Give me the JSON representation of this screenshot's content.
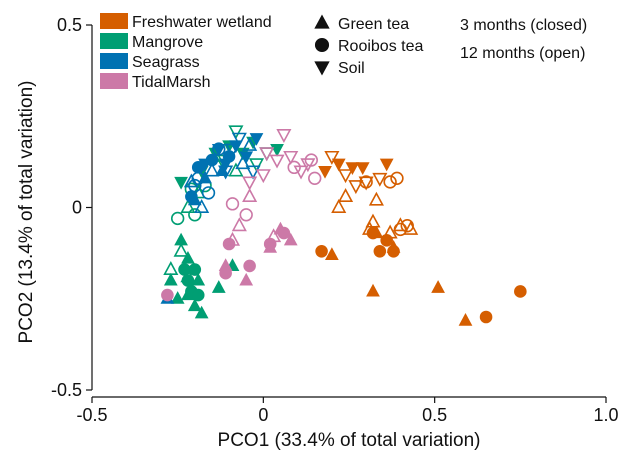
{
  "chart_data": {
    "type": "scatter",
    "xlabel": "PCO1 (33.4% of total variation)",
    "ylabel": "PCO2 (13.4% of total variation)",
    "xlim": [
      -0.5,
      1.0
    ],
    "ylim": [
      -0.5,
      0.5
    ],
    "xticks": [
      "-0.5",
      "0",
      "0.5",
      "1.0"
    ],
    "yticks": [
      "0.5",
      "0",
      "-0.5"
    ],
    "legend": {
      "ecosystems": [
        {
          "name": "Freshwater wetland",
          "color": "#d55e00"
        },
        {
          "name": "Mangrove",
          "color": "#009e73"
        },
        {
          "name": "Seagrass",
          "color": "#0072b2"
        },
        {
          "name": "TidalMarsh",
          "color": "#cc79a7"
        }
      ],
      "materials": [
        {
          "name": "Green tea",
          "shape": "triangle-up"
        },
        {
          "name": "Rooibos tea",
          "shape": "circle"
        },
        {
          "name": "Soil",
          "shape": "triangle-down"
        }
      ],
      "durations": [
        {
          "name": "3 months (closed)",
          "fill": "filled"
        },
        {
          "name": "12 months (open)",
          "fill": "open"
        }
      ]
    },
    "points": [
      {
        "x": 0.2,
        "y": -0.13,
        "eco": "Freshwater wetland",
        "m": "Green tea",
        "f": 1
      },
      {
        "x": 0.33,
        "y": -0.07,
        "eco": "Freshwater wetland",
        "m": "Green tea",
        "f": 1
      },
      {
        "x": 0.32,
        "y": -0.23,
        "eco": "Freshwater wetland",
        "m": "Green tea",
        "f": 1
      },
      {
        "x": 0.51,
        "y": -0.22,
        "eco": "Freshwater wetland",
        "m": "Green tea",
        "f": 1
      },
      {
        "x": 0.59,
        "y": -0.31,
        "eco": "Freshwater wetland",
        "m": "Green tea",
        "f": 1
      },
      {
        "x": 0.38,
        "y": -0.11,
        "eco": "Freshwater wetland",
        "m": "Green tea",
        "f": 1
      },
      {
        "x": 0.17,
        "y": -0.12,
        "eco": "Freshwater wetland",
        "m": "Rooibos tea",
        "f": 1
      },
      {
        "x": 0.36,
        "y": -0.09,
        "eco": "Freshwater wetland",
        "m": "Rooibos tea",
        "f": 1
      },
      {
        "x": 0.34,
        "y": -0.12,
        "eco": "Freshwater wetland",
        "m": "Rooibos tea",
        "f": 1
      },
      {
        "x": 0.38,
        "y": -0.12,
        "eco": "Freshwater wetland",
        "m": "Rooibos tea",
        "f": 1
      },
      {
        "x": 0.65,
        "y": -0.3,
        "eco": "Freshwater wetland",
        "m": "Rooibos tea",
        "f": 1
      },
      {
        "x": 0.75,
        "y": -0.23,
        "eco": "Freshwater wetland",
        "m": "Rooibos tea",
        "f": 1
      },
      {
        "x": 0.32,
        "y": -0.07,
        "eco": "Freshwater wetland",
        "m": "Rooibos tea",
        "f": 1
      },
      {
        "x": 0.22,
        "y": 0.12,
        "eco": "Freshwater wetland",
        "m": "Soil",
        "f": 1
      },
      {
        "x": 0.26,
        "y": 0.11,
        "eco": "Freshwater wetland",
        "m": "Soil",
        "f": 1
      },
      {
        "x": 0.29,
        "y": 0.11,
        "eco": "Freshwater wetland",
        "m": "Soil",
        "f": 1
      },
      {
        "x": 0.18,
        "y": 0.1,
        "eco": "Freshwater wetland",
        "m": "Soil",
        "f": 1
      },
      {
        "x": 0.36,
        "y": 0.12,
        "eco": "Freshwater wetland",
        "m": "Soil",
        "f": 1
      },
      {
        "x": 0.22,
        "y": 0.0,
        "eco": "Freshwater wetland",
        "m": "Green tea",
        "f": 0
      },
      {
        "x": 0.24,
        "y": 0.03,
        "eco": "Freshwater wetland",
        "m": "Green tea",
        "f": 0
      },
      {
        "x": 0.33,
        "y": 0.02,
        "eco": "Freshwater wetland",
        "m": "Green tea",
        "f": 0
      },
      {
        "x": 0.32,
        "y": -0.04,
        "eco": "Freshwater wetland",
        "m": "Green tea",
        "f": 0
      },
      {
        "x": 0.4,
        "y": -0.05,
        "eco": "Freshwater wetland",
        "m": "Green tea",
        "f": 0
      },
      {
        "x": 0.43,
        "y": -0.06,
        "eco": "Freshwater wetland",
        "m": "Green tea",
        "f": 0
      },
      {
        "x": 0.37,
        "y": -0.07,
        "eco": "Freshwater wetland",
        "m": "Green tea",
        "f": 0
      },
      {
        "x": 0.31,
        "y": -0.06,
        "eco": "Freshwater wetland",
        "m": "Green tea",
        "f": 0
      },
      {
        "x": 0.37,
        "y": 0.07,
        "eco": "Freshwater wetland",
        "m": "Rooibos tea",
        "f": 0
      },
      {
        "x": 0.39,
        "y": 0.08,
        "eco": "Freshwater wetland",
        "m": "Rooibos tea",
        "f": 0
      },
      {
        "x": 0.4,
        "y": -0.06,
        "eco": "Freshwater wetland",
        "m": "Rooibos tea",
        "f": 0
      },
      {
        "x": 0.42,
        "y": -0.05,
        "eco": "Freshwater wetland",
        "m": "Rooibos tea",
        "f": 0
      },
      {
        "x": 0.3,
        "y": 0.07,
        "eco": "Freshwater wetland",
        "m": "Rooibos tea",
        "f": 0
      },
      {
        "x": 0.2,
        "y": 0.14,
        "eco": "Freshwater wetland",
        "m": "Soil",
        "f": 0
      },
      {
        "x": 0.24,
        "y": 0.09,
        "eco": "Freshwater wetland",
        "m": "Soil",
        "f": 0
      },
      {
        "x": 0.3,
        "y": 0.07,
        "eco": "Freshwater wetland",
        "m": "Soil",
        "f": 0
      },
      {
        "x": 0.34,
        "y": 0.08,
        "eco": "Freshwater wetland",
        "m": "Soil",
        "f": 0
      },
      {
        "x": 0.27,
        "y": 0.06,
        "eco": "Freshwater wetland",
        "m": "Soil",
        "f": 0
      },
      {
        "x": -0.27,
        "y": -0.2,
        "eco": "Mangrove",
        "m": "Green tea",
        "f": 1
      },
      {
        "x": -0.25,
        "y": -0.25,
        "eco": "Mangrove",
        "m": "Green tea",
        "f": 1
      },
      {
        "x": -0.22,
        "y": -0.24,
        "eco": "Mangrove",
        "m": "Green tea",
        "f": 1
      },
      {
        "x": -0.2,
        "y": -0.27,
        "eco": "Mangrove",
        "m": "Green tea",
        "f": 1
      },
      {
        "x": -0.18,
        "y": -0.29,
        "eco": "Mangrove",
        "m": "Green tea",
        "f": 1
      },
      {
        "x": -0.13,
        "y": -0.22,
        "eco": "Mangrove",
        "m": "Green tea",
        "f": 1
      },
      {
        "x": -0.09,
        "y": -0.16,
        "eco": "Mangrove",
        "m": "Green tea",
        "f": 1
      },
      {
        "x": -0.22,
        "y": -0.14,
        "eco": "Mangrove",
        "m": "Green tea",
        "f": 1
      },
      {
        "x": -0.24,
        "y": -0.09,
        "eco": "Mangrove",
        "m": "Green tea",
        "f": 1
      },
      {
        "x": -0.19,
        "y": -0.2,
        "eco": "Mangrove",
        "m": "Green tea",
        "f": 1
      },
      {
        "x": -0.23,
        "y": -0.17,
        "eco": "Mangrove",
        "m": "Rooibos tea",
        "f": 1
      },
      {
        "x": -0.2,
        "y": -0.17,
        "eco": "Mangrove",
        "m": "Rooibos tea",
        "f": 1
      },
      {
        "x": -0.21,
        "y": -0.23,
        "eco": "Mangrove",
        "m": "Rooibos tea",
        "f": 1
      },
      {
        "x": -0.19,
        "y": -0.24,
        "eco": "Mangrove",
        "m": "Rooibos tea",
        "f": 1
      },
      {
        "x": -0.22,
        "y": -0.2,
        "eco": "Mangrove",
        "m": "Rooibos tea",
        "f": 1
      },
      {
        "x": -0.24,
        "y": 0.07,
        "eco": "Mangrove",
        "m": "Soil",
        "f": 1
      },
      {
        "x": -0.18,
        "y": 0.1,
        "eco": "Mangrove",
        "m": "Soil",
        "f": 1
      },
      {
        "x": -0.14,
        "y": 0.15,
        "eco": "Mangrove",
        "m": "Soil",
        "f": 1
      },
      {
        "x": -0.1,
        "y": 0.17,
        "eco": "Mangrove",
        "m": "Soil",
        "f": 1
      },
      {
        "x": -0.06,
        "y": 0.15,
        "eco": "Mangrove",
        "m": "Soil",
        "f": 1
      },
      {
        "x": -0.03,
        "y": 0.18,
        "eco": "Mangrove",
        "m": "Soil",
        "f": 1
      },
      {
        "x": 0.04,
        "y": 0.16,
        "eco": "Mangrove",
        "m": "Soil",
        "f": 1
      },
      {
        "x": -0.27,
        "y": -0.17,
        "eco": "Mangrove",
        "m": "Green tea",
        "f": 0
      },
      {
        "x": -0.22,
        "y": -0.19,
        "eco": "Mangrove",
        "m": "Green tea",
        "f": 0
      },
      {
        "x": -0.24,
        "y": -0.12,
        "eco": "Mangrove",
        "m": "Green tea",
        "f": 0
      },
      {
        "x": -0.22,
        "y": 0.0,
        "eco": "Mangrove",
        "m": "Green tea",
        "f": 0
      },
      {
        "x": -0.19,
        "y": 0.04,
        "eco": "Mangrove",
        "m": "Green tea",
        "f": 0
      },
      {
        "x": -0.14,
        "y": 0.14,
        "eco": "Mangrove",
        "m": "Green tea",
        "f": 0
      },
      {
        "x": -0.08,
        "y": 0.1,
        "eco": "Mangrove",
        "m": "Green tea",
        "f": 0
      },
      {
        "x": -0.25,
        "y": -0.03,
        "eco": "Mangrove",
        "m": "Rooibos tea",
        "f": 0
      },
      {
        "x": -0.2,
        "y": -0.02,
        "eco": "Mangrove",
        "m": "Rooibos tea",
        "f": 0
      },
      {
        "x": -0.17,
        "y": 0.06,
        "eco": "Mangrove",
        "m": "Rooibos tea",
        "f": 0
      },
      {
        "x": -0.21,
        "y": 0.05,
        "eco": "Mangrove",
        "m": "Rooibos tea",
        "f": 0
      },
      {
        "x": -0.08,
        "y": 0.21,
        "eco": "Mangrove",
        "m": "Soil",
        "f": 0
      },
      {
        "x": -0.12,
        "y": 0.13,
        "eco": "Mangrove",
        "m": "Soil",
        "f": 0
      },
      {
        "x": -0.02,
        "y": 0.12,
        "eco": "Mangrove",
        "m": "Soil",
        "f": 0
      },
      {
        "x": 0.01,
        "y": 0.15,
        "eco": "Mangrove",
        "m": "Soil",
        "f": 0
      },
      {
        "x": -0.28,
        "y": -0.25,
        "eco": "Seagrass",
        "m": "Green tea",
        "f": 1
      },
      {
        "x": -0.2,
        "y": 0.02,
        "eco": "Seagrass",
        "m": "Green tea",
        "f": 1
      },
      {
        "x": -0.17,
        "y": 0.08,
        "eco": "Seagrass",
        "m": "Green tea",
        "f": 1
      },
      {
        "x": -0.12,
        "y": 0.1,
        "eco": "Seagrass",
        "m": "Green tea",
        "f": 1
      },
      {
        "x": -0.19,
        "y": 0.11,
        "eco": "Seagrass",
        "m": "Rooibos tea",
        "f": 1
      },
      {
        "x": -0.15,
        "y": 0.13,
        "eco": "Seagrass",
        "m": "Rooibos tea",
        "f": 1
      },
      {
        "x": -0.1,
        "y": 0.14,
        "eco": "Seagrass",
        "m": "Rooibos tea",
        "f": 1
      },
      {
        "x": -0.21,
        "y": 0.03,
        "eco": "Seagrass",
        "m": "Rooibos tea",
        "f": 1
      },
      {
        "x": -0.17,
        "y": 0.12,
        "eco": "Seagrass",
        "m": "Soil",
        "f": 1
      },
      {
        "x": -0.13,
        "y": 0.16,
        "eco": "Seagrass",
        "m": "Soil",
        "f": 1
      },
      {
        "x": -0.08,
        "y": 0.17,
        "eco": "Seagrass",
        "m": "Soil",
        "f": 1
      },
      {
        "x": -0.05,
        "y": 0.14,
        "eco": "Seagrass",
        "m": "Soil",
        "f": 1
      },
      {
        "x": -0.02,
        "y": 0.19,
        "eco": "Seagrass",
        "m": "Soil",
        "f": 1
      },
      {
        "x": -0.11,
        "y": 0.12,
        "eco": "Seagrass",
        "m": "Soil",
        "f": 1
      },
      {
        "x": -0.21,
        "y": 0.07,
        "eco": "Seagrass",
        "m": "Green tea",
        "f": 0
      },
      {
        "x": -0.18,
        "y": 0.0,
        "eco": "Seagrass",
        "m": "Green tea",
        "f": 0
      },
      {
        "x": -0.04,
        "y": 0.17,
        "eco": "Seagrass",
        "m": "Green tea",
        "f": 0
      },
      {
        "x": -0.06,
        "y": 0.12,
        "eco": "Seagrass",
        "m": "Green tea",
        "f": 0
      },
      {
        "x": -0.15,
        "y": 0.1,
        "eco": "Seagrass",
        "m": "Green tea",
        "f": 0
      },
      {
        "x": -0.19,
        "y": 0.08,
        "eco": "Seagrass",
        "m": "Rooibos tea",
        "f": 0
      },
      {
        "x": -0.16,
        "y": 0.04,
        "eco": "Seagrass",
        "m": "Rooibos tea",
        "f": 0
      },
      {
        "x": -0.13,
        "y": 0.16,
        "eco": "Seagrass",
        "m": "Rooibos tea",
        "f": 0
      },
      {
        "x": -0.2,
        "y": 0.06,
        "eco": "Seagrass",
        "m": "Rooibos tea",
        "f": 0
      },
      {
        "x": -0.09,
        "y": 0.16,
        "eco": "Seagrass",
        "m": "Soil",
        "f": 0
      },
      {
        "x": -0.03,
        "y": 0.1,
        "eco": "Seagrass",
        "m": "Soil",
        "f": 0
      },
      {
        "x": -0.07,
        "y": 0.19,
        "eco": "Seagrass",
        "m": "Soil",
        "f": 0
      },
      {
        "x": -0.11,
        "y": 0.1,
        "eco": "Seagrass",
        "m": "Soil",
        "f": 0
      },
      {
        "x": -0.05,
        "y": -0.2,
        "eco": "TidalMarsh",
        "m": "Green tea",
        "f": 1
      },
      {
        "x": 0.08,
        "y": -0.09,
        "eco": "TidalMarsh",
        "m": "Green tea",
        "f": 1
      },
      {
        "x": -0.11,
        "y": -0.16,
        "eco": "TidalMarsh",
        "m": "Green tea",
        "f": 1
      },
      {
        "x": 0.02,
        "y": -0.11,
        "eco": "TidalMarsh",
        "m": "Green tea",
        "f": 1
      },
      {
        "x": 0.05,
        "y": -0.06,
        "eco": "TidalMarsh",
        "m": "Green tea",
        "f": 1
      },
      {
        "x": -0.28,
        "y": -0.24,
        "eco": "TidalMarsh",
        "m": "Rooibos tea",
        "f": 1
      },
      {
        "x": -0.11,
        "y": -0.18,
        "eco": "TidalMarsh",
        "m": "Rooibos tea",
        "f": 1
      },
      {
        "x": -0.04,
        "y": -0.16,
        "eco": "TidalMarsh",
        "m": "Rooibos tea",
        "f": 1
      },
      {
        "x": 0.02,
        "y": -0.1,
        "eco": "TidalMarsh",
        "m": "Rooibos tea",
        "f": 1
      },
      {
        "x": 0.06,
        "y": -0.07,
        "eco": "TidalMarsh",
        "m": "Rooibos tea",
        "f": 1
      },
      {
        "x": -0.1,
        "y": -0.1,
        "eco": "TidalMarsh",
        "m": "Rooibos tea",
        "f": 1
      },
      {
        "x": -0.07,
        "y": -0.05,
        "eco": "TidalMarsh",
        "m": "Green tea",
        "f": 0
      },
      {
        "x": -0.09,
        "y": -0.09,
        "eco": "TidalMarsh",
        "m": "Green tea",
        "f": 0
      },
      {
        "x": -0.04,
        "y": 0.03,
        "eco": "TidalMarsh",
        "m": "Green tea",
        "f": 0
      },
      {
        "x": 0.03,
        "y": -0.08,
        "eco": "TidalMarsh",
        "m": "Green tea",
        "f": 0
      },
      {
        "x": -0.09,
        "y": 0.01,
        "eco": "TidalMarsh",
        "m": "Rooibos tea",
        "f": 0
      },
      {
        "x": -0.05,
        "y": -0.02,
        "eco": "TidalMarsh",
        "m": "Rooibos tea",
        "f": 0
      },
      {
        "x": 0.15,
        "y": 0.08,
        "eco": "TidalMarsh",
        "m": "Rooibos tea",
        "f": 0
      },
      {
        "x": 0.09,
        "y": 0.11,
        "eco": "TidalMarsh",
        "m": "Rooibos tea",
        "f": 0
      },
      {
        "x": 0.14,
        "y": 0.13,
        "eco": "TidalMarsh",
        "m": "Rooibos tea",
        "f": 0
      },
      {
        "x": -0.04,
        "y": 0.07,
        "eco": "TidalMarsh",
        "m": "Soil",
        "f": 0
      },
      {
        "x": 0.0,
        "y": 0.09,
        "eco": "TidalMarsh",
        "m": "Soil",
        "f": 0
      },
      {
        "x": 0.04,
        "y": 0.13,
        "eco": "TidalMarsh",
        "m": "Soil",
        "f": 0
      },
      {
        "x": 0.08,
        "y": 0.14,
        "eco": "TidalMarsh",
        "m": "Soil",
        "f": 0
      },
      {
        "x": 0.13,
        "y": 0.12,
        "eco": "TidalMarsh",
        "m": "Soil",
        "f": 0
      },
      {
        "x": 0.01,
        "y": 0.15,
        "eco": "TidalMarsh",
        "m": "Soil",
        "f": 0
      },
      {
        "x": 0.06,
        "y": 0.2,
        "eco": "TidalMarsh",
        "m": "Soil",
        "f": 0
      },
      {
        "x": 0.11,
        "y": 0.1,
        "eco": "TidalMarsh",
        "m": "Soil",
        "f": 0
      }
    ]
  }
}
